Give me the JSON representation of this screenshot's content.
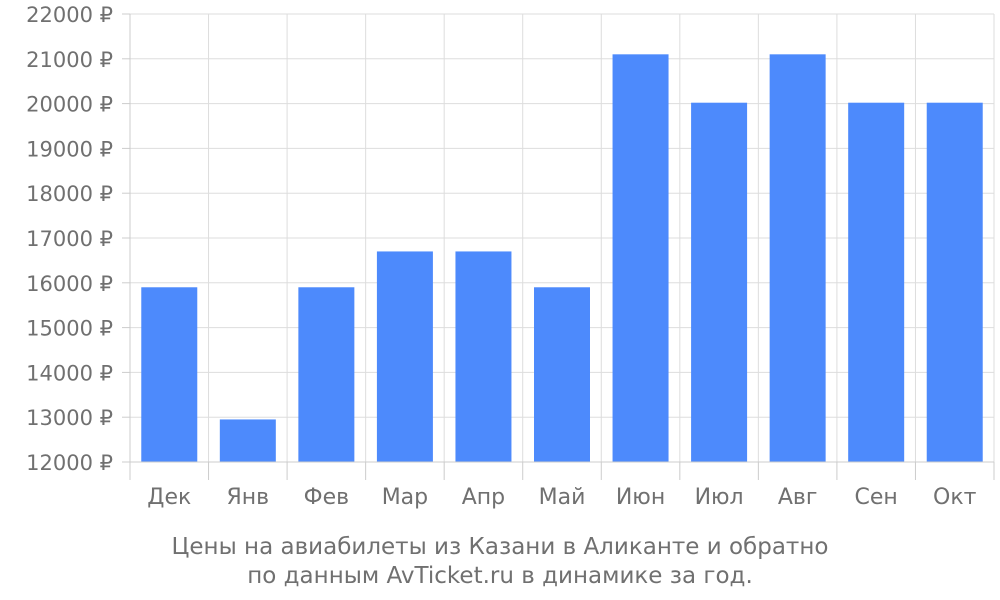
{
  "chart_data": {
    "type": "bar",
    "categories": [
      "Дек",
      "Янв",
      "Фев",
      "Мар",
      "Апр",
      "Май",
      "Июн",
      "Июл",
      "Авг",
      "Сен",
      "Окт"
    ],
    "values": [
      15900,
      12950,
      15900,
      16700,
      16700,
      15900,
      21100,
      20020,
      21100,
      20020,
      20020
    ],
    "ylim": [
      12000,
      22000
    ],
    "yticks": [
      12000,
      13000,
      14000,
      15000,
      16000,
      17000,
      18000,
      19000,
      20000,
      21000,
      22000
    ],
    "ytick_labels": [
      "12000 ₽",
      "13000 ₽",
      "14000 ₽",
      "15000 ₽",
      "16000 ₽",
      "17000 ₽",
      "18000 ₽",
      "19000 ₽",
      "20000 ₽",
      "21000 ₽",
      "22000 ₽"
    ],
    "grid": true,
    "bar_color": "#4d8afc",
    "caption_line1": "Цены на авиабилеты из Казани в Аликанте и обратно",
    "caption_line2": "по данным AvTicket.ru в динамике за год."
  }
}
